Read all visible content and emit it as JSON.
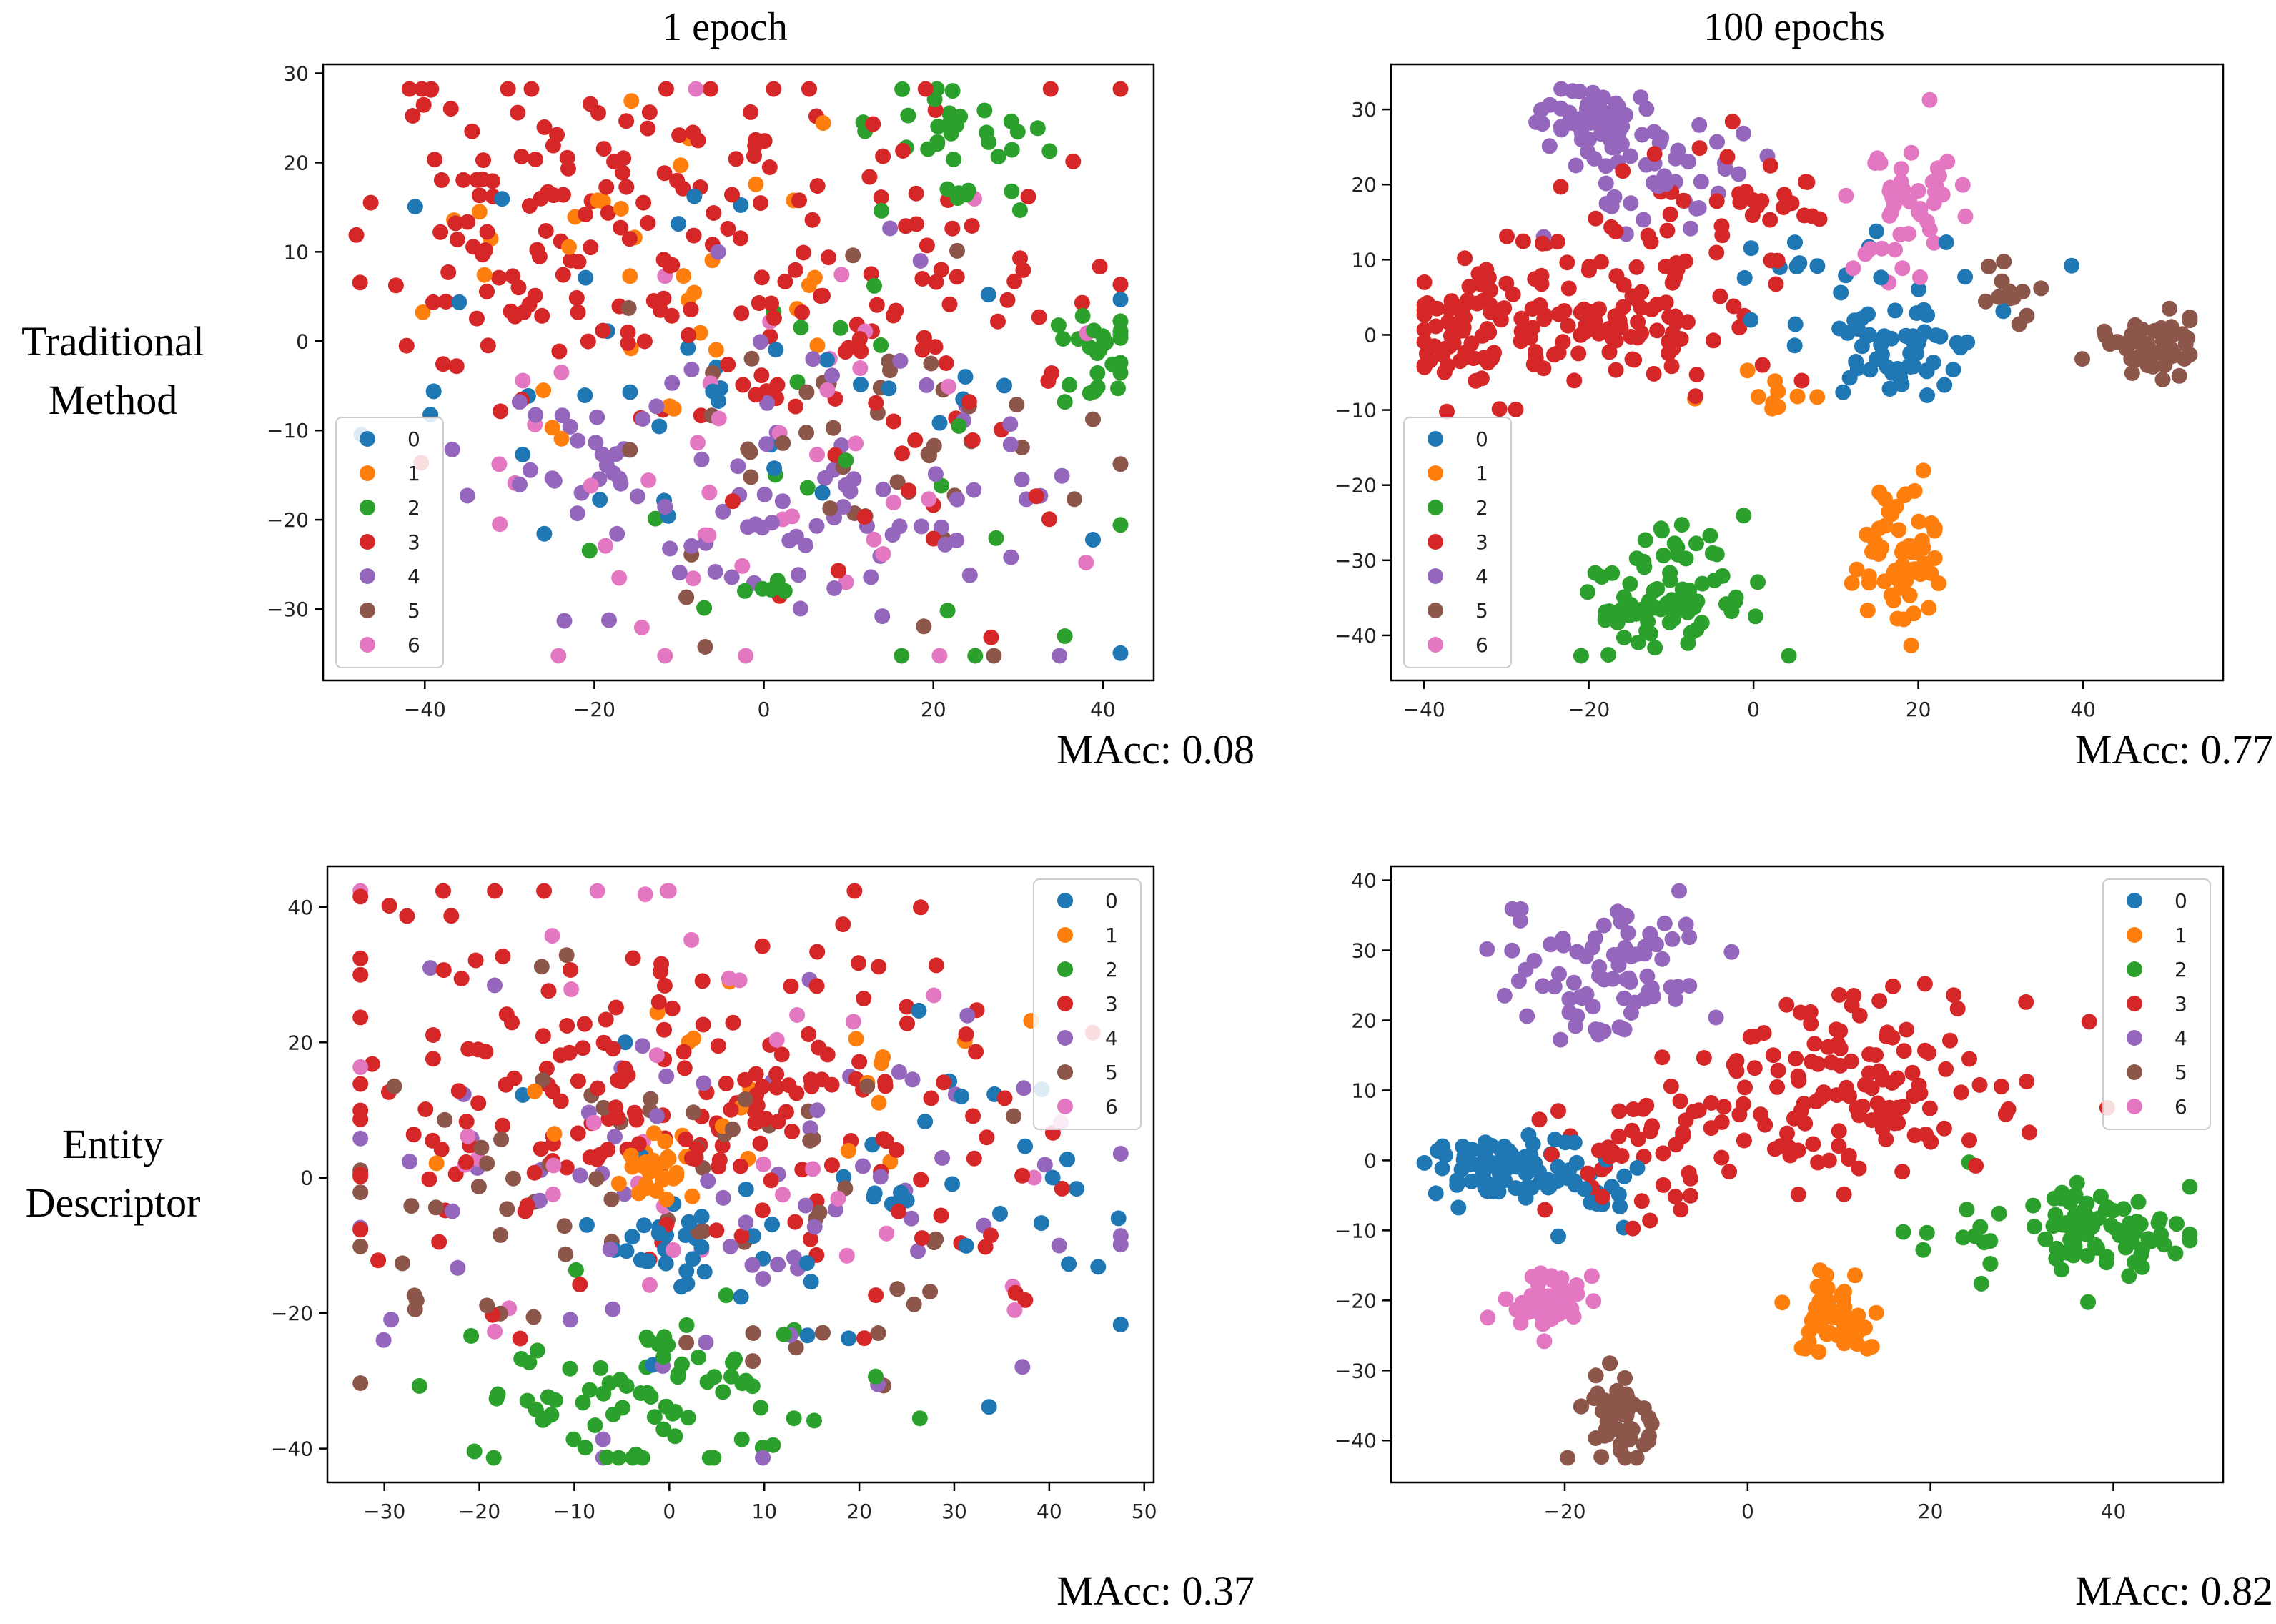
{
  "figure": {
    "col_titles": [
      "1 epoch",
      "100 epochs"
    ],
    "row_labels": [
      [
        "Traditional",
        "Method"
      ],
      [
        "Entity",
        "Descriptor"
      ]
    ]
  },
  "palette": {
    "0": "#1f77b4",
    "1": "#ff7f0e",
    "2": "#2ca02c",
    "3": "#d62728",
    "4": "#9467bd",
    "5": "#8c564b",
    "6": "#e377c2"
  },
  "chart_data": [
    {
      "id": "tm-1",
      "type": "scatter",
      "title": "Traditional Method, 1 epoch",
      "metric": "MAcc: 0.08",
      "xlim": [
        -52,
        46
      ],
      "ylim": [
        -38,
        31
      ],
      "xticks": [
        -40,
        -20,
        0,
        20,
        40
      ],
      "yticks": [
        -30,
        -20,
        -10,
        0,
        10,
        20,
        30
      ],
      "legend_loc": "lower-left",
      "legend": [
        "0",
        "1",
        "2",
        "3",
        "4",
        "5",
        "6"
      ],
      "seed": 11,
      "clusters": [
        {
          "label": "3",
          "cx": -25,
          "cy": 12,
          "sx": 11,
          "sy": 9,
          "n": 120
        },
        {
          "label": "3",
          "cx": 10,
          "cy": 5,
          "sx": 14,
          "sy": 15,
          "n": 110
        },
        {
          "label": "4",
          "cx": -10,
          "cy": -15,
          "sx": 12,
          "sy": 8,
          "n": 55
        },
        {
          "label": "4",
          "cx": 15,
          "cy": -20,
          "sx": 10,
          "sy": 8,
          "n": 45
        },
        {
          "label": "2",
          "cx": 22,
          "cy": 22,
          "sx": 5,
          "sy": 4,
          "n": 35
        },
        {
          "label": "2",
          "cx": 40,
          "cy": 0,
          "sx": 3,
          "sy": 3,
          "n": 25
        },
        {
          "label": "2",
          "cx": 5,
          "cy": -15,
          "sx": 15,
          "sy": 12,
          "n": 25
        },
        {
          "label": "5",
          "cx": 15,
          "cy": -10,
          "sx": 15,
          "sy": 10,
          "n": 45
        },
        {
          "label": "6",
          "cx": 0,
          "cy": -10,
          "sx": 20,
          "sy": 15,
          "n": 45
        },
        {
          "label": "0",
          "cx": -5,
          "cy": -5,
          "sx": 25,
          "sy": 15,
          "n": 40
        },
        {
          "label": "1",
          "cx": -15,
          "cy": 10,
          "sx": 14,
          "sy": 9,
          "n": 35
        }
      ]
    },
    {
      "id": "tm-100",
      "type": "scatter",
      "title": "Traditional Method, 100 epochs",
      "metric": "MAcc: 0.77",
      "xlim": [
        -44,
        57
      ],
      "ylim": [
        -46,
        36
      ],
      "xticks": [
        -40,
        -20,
        0,
        20,
        40
      ],
      "yticks": [
        -40,
        -30,
        -20,
        -10,
        0,
        10,
        20,
        30
      ],
      "legend_loc": "lower-left",
      "legend": [
        "0",
        "1",
        "2",
        "3",
        "4",
        "5",
        "6"
      ],
      "seed": 23,
      "clusters": [
        {
          "label": "4",
          "cx": -20,
          "cy": 28,
          "sx": 4,
          "sy": 3,
          "n": 55
        },
        {
          "label": "4",
          "cx": -10,
          "cy": 22,
          "sx": 6,
          "sy": 4,
          "n": 40
        },
        {
          "label": "3",
          "cx": -35,
          "cy": 0,
          "sx": 4,
          "sy": 4,
          "n": 70
        },
        {
          "label": "3",
          "cx": -18,
          "cy": 2,
          "sx": 7,
          "sy": 5,
          "n": 90
        },
        {
          "label": "3",
          "cx": -5,
          "cy": 15,
          "sx": 8,
          "sy": 6,
          "n": 45
        },
        {
          "label": "0",
          "cx": 18,
          "cy": -3,
          "sx": 3,
          "sy": 3,
          "n": 50
        },
        {
          "label": "0",
          "cx": 10,
          "cy": 5,
          "sx": 10,
          "sy": 6,
          "n": 25
        },
        {
          "label": "6",
          "cx": 18,
          "cy": 18,
          "sx": 3,
          "sy": 4,
          "n": 45
        },
        {
          "label": "5",
          "cx": 48,
          "cy": -1,
          "sx": 3,
          "sy": 2,
          "n": 45
        },
        {
          "label": "5",
          "cx": 30,
          "cy": 6,
          "sx": 2,
          "sy": 2,
          "n": 12
        },
        {
          "label": "2",
          "cx": -10,
          "cy": -35,
          "sx": 5,
          "sy": 4,
          "n": 80
        },
        {
          "label": "1",
          "cx": 18,
          "cy": -30,
          "sx": 3,
          "sy": 4,
          "n": 60
        },
        {
          "label": "1",
          "cx": 2,
          "cy": -7,
          "sx": 3,
          "sy": 2,
          "n": 10
        }
      ]
    },
    {
      "id": "ed-1",
      "type": "scatter",
      "title": "Entity Descriptor, 1 epoch",
      "metric": "MAcc: 0.37",
      "xlim": [
        -36,
        51
      ],
      "ylim": [
        -45,
        46
      ],
      "xticks": [
        -30,
        -20,
        -10,
        0,
        10,
        20,
        30,
        40,
        50
      ],
      "yticks": [
        -40,
        -20,
        0,
        20,
        40
      ],
      "legend_loc": "upper-right",
      "legend": [
        "0",
        "1",
        "2",
        "3",
        "4",
        "5",
        "6"
      ],
      "seed": 37,
      "clusters": [
        {
          "label": "3",
          "cx": -5,
          "cy": 15,
          "sx": 16,
          "sy": 14,
          "n": 150
        },
        {
          "label": "3",
          "cx": 20,
          "cy": 5,
          "sx": 12,
          "sy": 12,
          "n": 60
        },
        {
          "label": "2",
          "cx": -2,
          "cy": -32,
          "sx": 10,
          "sy": 6,
          "n": 80
        },
        {
          "label": "1",
          "cx": -1,
          "cy": 1,
          "sx": 2,
          "sy": 2,
          "n": 25
        },
        {
          "label": "1",
          "cx": 10,
          "cy": 10,
          "sx": 15,
          "sy": 10,
          "n": 25
        },
        {
          "label": "0",
          "cx": 0,
          "cy": -10,
          "sx": 3,
          "sy": 3,
          "n": 25
        },
        {
          "label": "0",
          "cx": 20,
          "cy": 0,
          "sx": 15,
          "sy": 12,
          "n": 40
        },
        {
          "label": "4",
          "cx": 5,
          "cy": -5,
          "sx": 20,
          "sy": 16,
          "n": 70
        },
        {
          "label": "5",
          "cx": 0,
          "cy": -5,
          "sx": 20,
          "sy": 15,
          "n": 70
        },
        {
          "label": "6",
          "cx": 0,
          "cy": 10,
          "sx": 18,
          "sy": 18,
          "n": 40
        }
      ]
    },
    {
      "id": "ed-100",
      "type": "scatter",
      "title": "Entity Descriptor, 100 epochs",
      "metric": "MAcc: 0.82",
      "xlim": [
        -39,
        52
      ],
      "ylim": [
        -46,
        42
      ],
      "xticks": [
        -20,
        0,
        20,
        40
      ],
      "yticks": [
        -40,
        -30,
        -20,
        -10,
        0,
        10,
        20,
        30,
        40
      ],
      "legend_loc": "upper-right",
      "legend": [
        "0",
        "1",
        "2",
        "3",
        "4",
        "5",
        "6"
      ],
      "seed": 53,
      "clusters": [
        {
          "label": "0",
          "cx": -28,
          "cy": -1,
          "sx": 4,
          "sy": 2,
          "n": 70
        },
        {
          "label": "0",
          "cx": -18,
          "cy": -4,
          "sx": 4,
          "sy": 4,
          "n": 25
        },
        {
          "label": "4",
          "cx": -15,
          "cy": 28,
          "sx": 5,
          "sy": 5,
          "n": 80
        },
        {
          "label": "3",
          "cx": 10,
          "cy": 10,
          "sx": 9,
          "sy": 7,
          "n": 140
        },
        {
          "label": "3",
          "cx": -12,
          "cy": 0,
          "sx": 5,
          "sy": 6,
          "n": 40
        },
        {
          "label": "2",
          "cx": 38,
          "cy": -10,
          "sx": 5,
          "sy": 3,
          "n": 80
        },
        {
          "label": "2",
          "cx": 22,
          "cy": -10,
          "sx": 3,
          "sy": 3,
          "n": 10
        },
        {
          "label": "1",
          "cx": 10,
          "cy": -22,
          "sx": 2,
          "sy": 3,
          "n": 60
        },
        {
          "label": "6",
          "cx": -22,
          "cy": -20,
          "sx": 3,
          "sy": 2,
          "n": 50
        },
        {
          "label": "5",
          "cx": -14,
          "cy": -36,
          "sx": 2,
          "sy": 3,
          "n": 50
        }
      ]
    }
  ]
}
